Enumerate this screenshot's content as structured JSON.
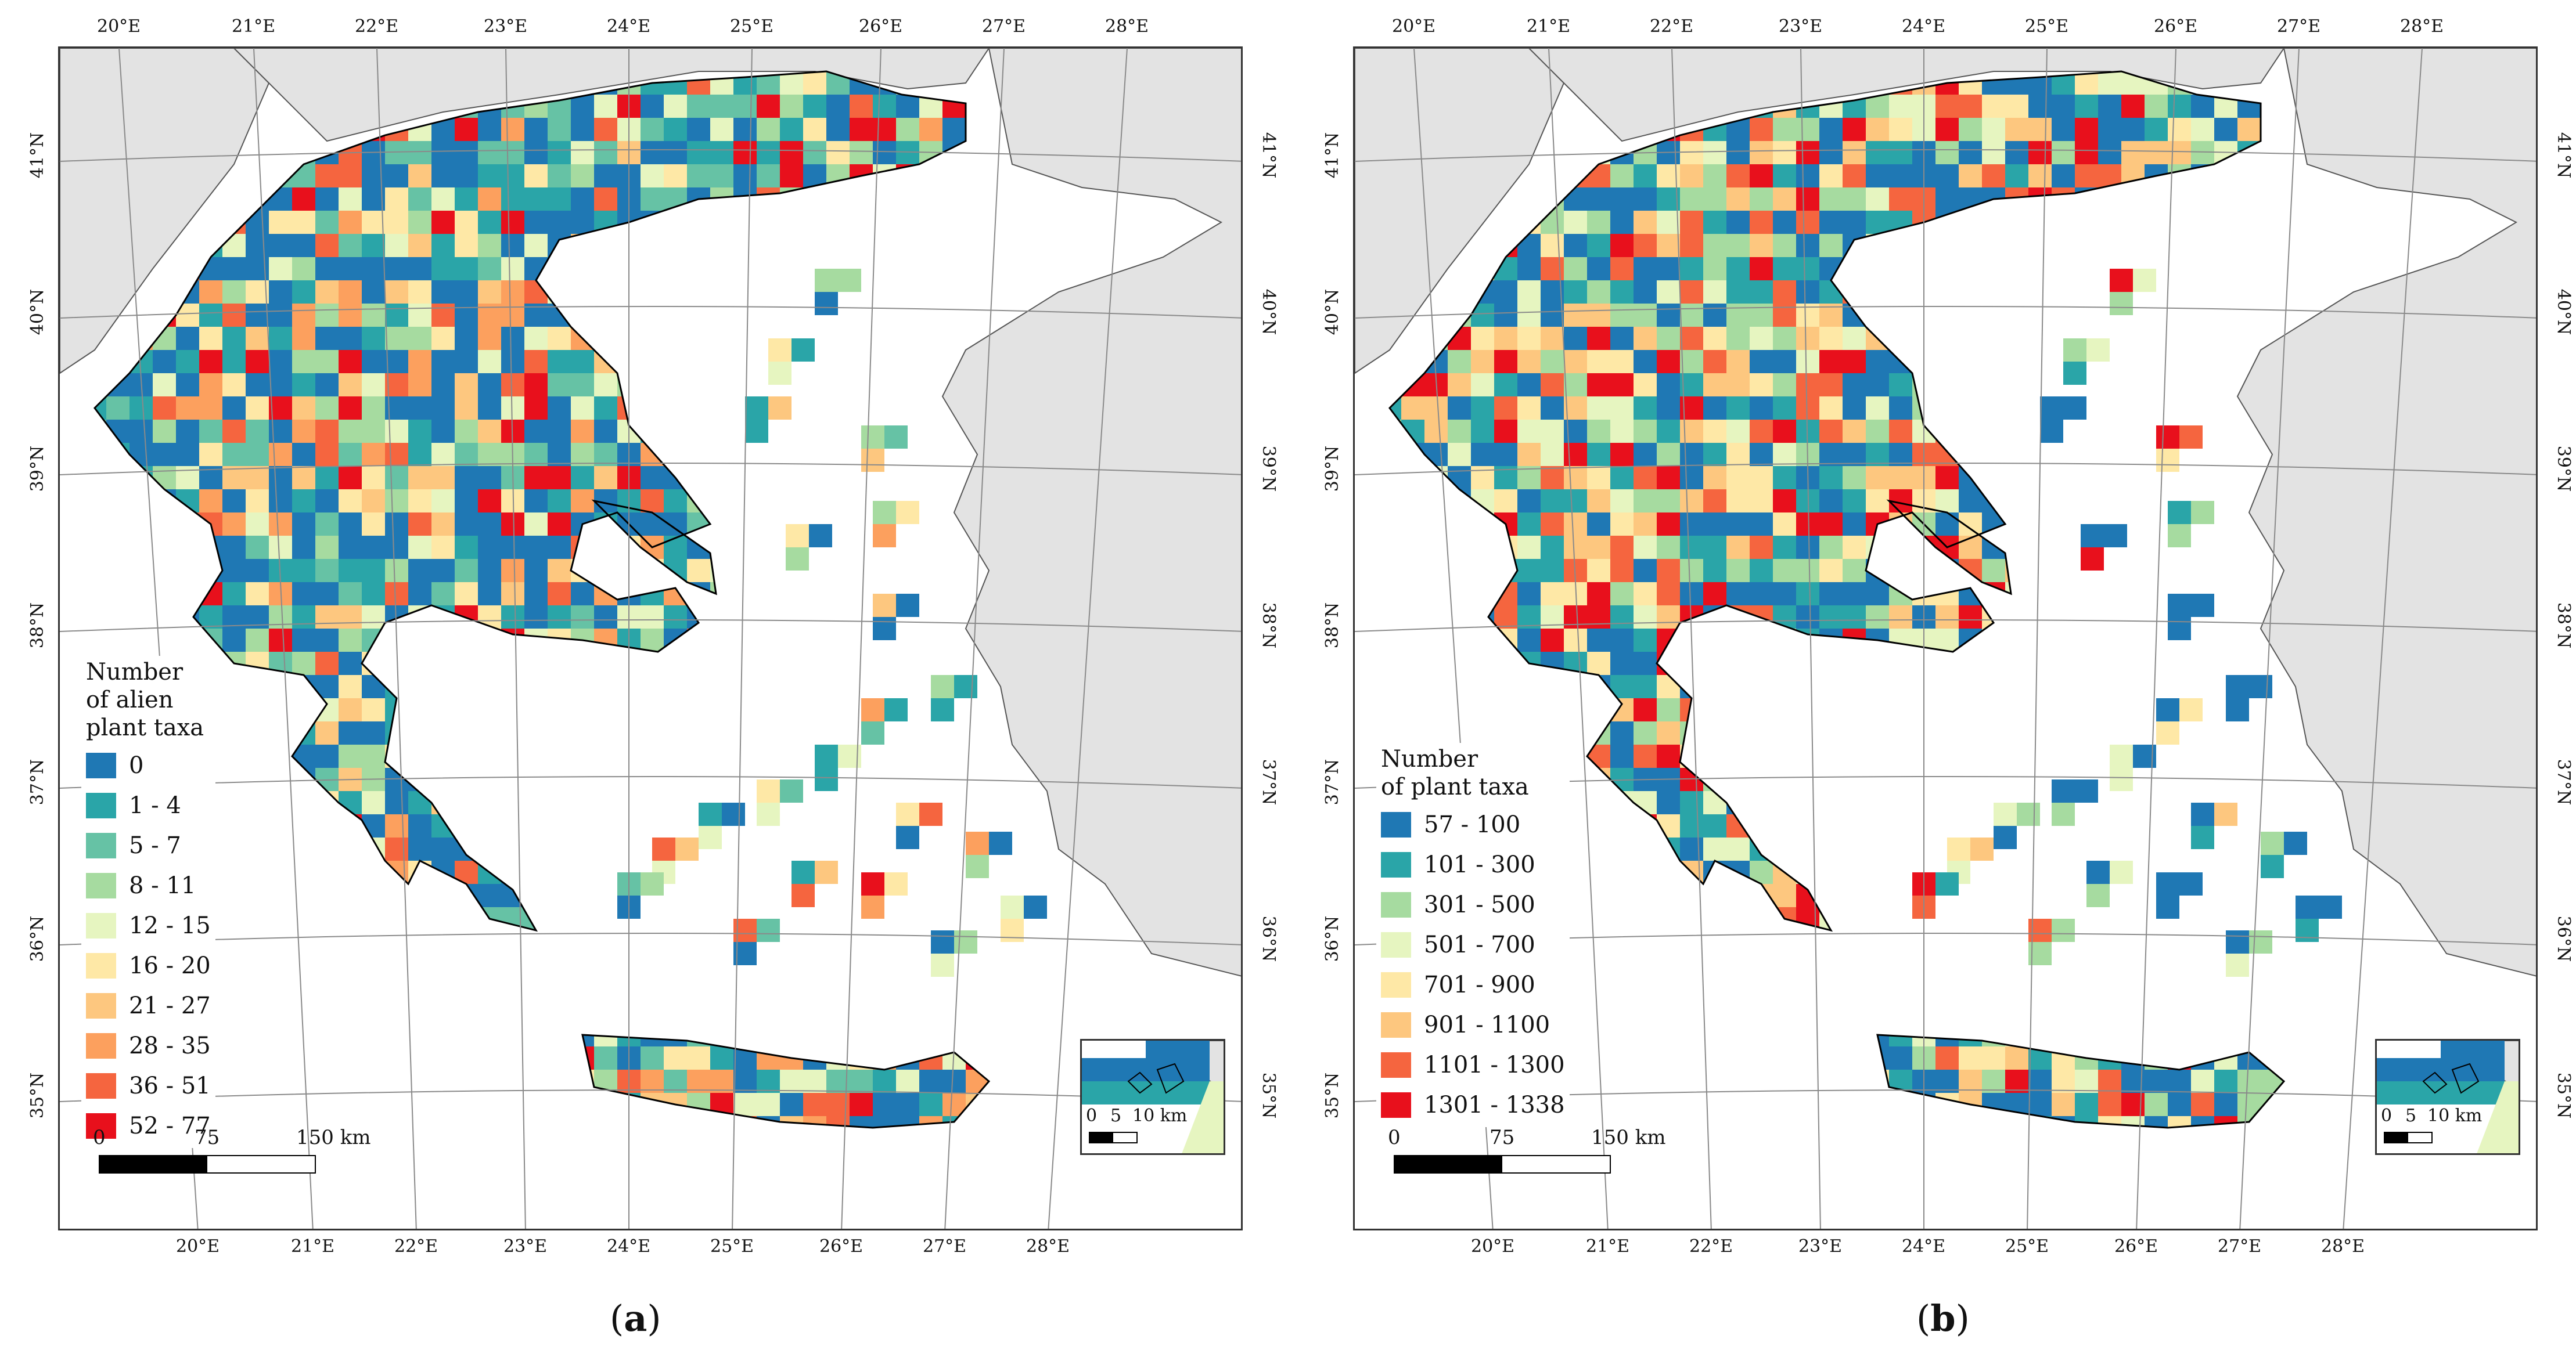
{
  "panels": [
    {
      "id": "a",
      "caption_letter": "a",
      "legend": {
        "title_lines": [
          "Number",
          "of alien",
          "plant taxa"
        ],
        "classes": [
          {
            "label": "0",
            "color": "#1f78b4"
          },
          {
            "label": "1 - 4",
            "color": "#2aa5a8"
          },
          {
            "label": "5 - 7",
            "color": "#66c2a5"
          },
          {
            "label": "8 - 11",
            "color": "#a6dba0"
          },
          {
            "label": "12 - 15",
            "color": "#e6f5c0"
          },
          {
            "label": "16 - 20",
            "color": "#fee8a6"
          },
          {
            "label": "21 - 27",
            "color": "#fdc77f"
          },
          {
            "label": "28 - 35",
            "color": "#fca05e"
          },
          {
            "label": "36 - 51",
            "color": "#f5653f"
          },
          {
            "label": "52 - 77",
            "color": "#e8101c"
          }
        ]
      },
      "scalebar": {
        "labels": [
          "0",
          "75",
          "150 km"
        ]
      },
      "inset_scale": {
        "labels": [
          "0",
          "5",
          "10 km"
        ]
      }
    },
    {
      "id": "b",
      "caption_letter": "b",
      "legend": {
        "title_lines": [
          "Number",
          "of plant taxa"
        ],
        "classes": [
          {
            "label": "57 - 100",
            "color": "#1f78b4"
          },
          {
            "label": "101 - 300",
            "color": "#2aa5a8"
          },
          {
            "label": "301 - 500",
            "color": "#a6dba0"
          },
          {
            "label": "501 - 700",
            "color": "#e6f5c0"
          },
          {
            "label": "701 - 900",
            "color": "#fee8a6"
          },
          {
            "label": "901 - 1100",
            "color": "#fdc77f"
          },
          {
            "label": "1101 - 1300",
            "color": "#f5653f"
          },
          {
            "label": "1301 - 1338",
            "color": "#e8101c"
          }
        ]
      },
      "scalebar": {
        "labels": [
          "0",
          "75",
          "150 km"
        ]
      },
      "inset_scale": {
        "labels": [
          "0",
          "5",
          "10 km"
        ]
      }
    }
  ],
  "longitude_labels": [
    "20°E",
    "21°E",
    "22°E",
    "23°E",
    "24°E",
    "25°E",
    "26°E",
    "27°E",
    "28°E"
  ],
  "latitude_labels": [
    "41°N",
    "40°N",
    "39°N",
    "38°N",
    "37°N",
    "36°N",
    "35°N"
  ],
  "colors": {
    "land_outside": "#e3e3e3",
    "sea": "#ffffff",
    "coast": "#000000",
    "grid": "#8a8a8a"
  }
}
